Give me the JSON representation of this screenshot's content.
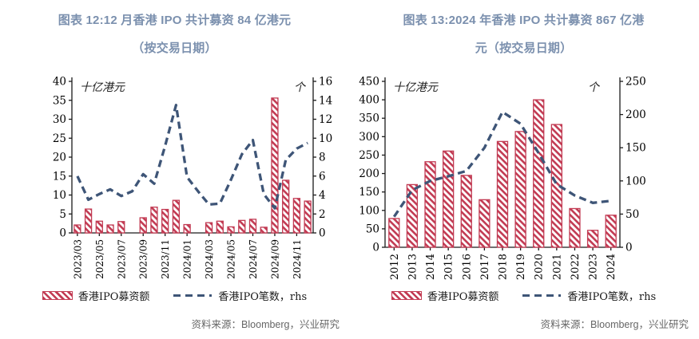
{
  "colors": {
    "title": "#7b90ae",
    "bar": "#c23b53",
    "bar_fill_bg": "#ffffff",
    "line": "#3e5577",
    "axis": "#1a1a1a",
    "source_text": "#666666"
  },
  "panels": [
    {
      "title_line1": "图表 12:12 月香港 IPO 共计募资 84 亿港元",
      "title_line2": "（按交易日期）",
      "legend": {
        "bars": "香港IPO募资额",
        "line": "香港IPO笔数，rhs"
      },
      "source": "资料来源：Bloomberg，兴业研究"
    },
    {
      "title_line1": "图表 13:2024 年香港 IPO 共计募资 867 亿港",
      "title_line2": "元（按交易日期）",
      "legend": {
        "bars": "香港IPO募资额",
        "line": "香港IPO笔数，rhs"
      },
      "source": "资料来源：Bloomberg，兴业研究"
    }
  ],
  "chart_data": [
    {
      "type": "bar",
      "title": "图表 12:12 月香港 IPO 共计募资 84 亿港元（按交易日期）",
      "categories": [
        "2023/03",
        "2023/04",
        "2023/05",
        "2023/06",
        "2023/07",
        "2023/08",
        "2023/09",
        "2023/10",
        "2023/11",
        "2023/12",
        "2024/01",
        "2024/02",
        "2024/03",
        "2024/04",
        "2024/05",
        "2024/06",
        "2024/07",
        "2024/08",
        "2024/09",
        "2024/10",
        "2024/11",
        "2024/12"
      ],
      "x_tick_labels": [
        "2023/03",
        "2023/05",
        "2023/07",
        "2023/09",
        "2023/11",
        "2024/01",
        "2024/03",
        "2024/05",
        "2024/07",
        "2024/09",
        "2024/11"
      ],
      "series": [
        {
          "name": "香港IPO募资额",
          "type": "bar",
          "axis": "left",
          "values": [
            2.1,
            6.3,
            3.1,
            2.1,
            3.0,
            0,
            4.0,
            6.8,
            6.2,
            8.6,
            2.2,
            0,
            2.7,
            3.1,
            1.6,
            3.3,
            3.6,
            1.5,
            35.6,
            13.9,
            9.1,
            8.4
          ]
        },
        {
          "name": "香港IPO笔数，rhs",
          "type": "line",
          "axis": "right",
          "values": [
            6.0,
            3.5,
            4.1,
            4.6,
            3.9,
            4.4,
            6.2,
            5.2,
            9.2,
            13.5,
            5.9,
            4.4,
            3.0,
            3.1,
            5.6,
            8.3,
            9.8,
            4.1,
            2.6,
            7.7,
            8.9,
            9.5
          ]
        }
      ],
      "left_axis": {
        "label": "十亿港元",
        "min": 0,
        "max": 40,
        "step": 5
      },
      "right_axis": {
        "label": "个",
        "min": 0,
        "max": 16,
        "step": 2
      },
      "grid": false,
      "legend_position": "bottom"
    },
    {
      "type": "bar",
      "title": "图表 13:2024 年香港 IPO 共计募资 867 亿港元（按交易日期）",
      "categories": [
        "2012",
        "2013",
        "2014",
        "2015",
        "2016",
        "2017",
        "2018",
        "2019",
        "2020",
        "2021",
        "2022",
        "2023",
        "2024"
      ],
      "x_tick_labels": [
        "2012",
        "2013",
        "2014",
        "2015",
        "2016",
        "2017",
        "2018",
        "2019",
        "2020",
        "2021",
        "2022",
        "2023",
        "2024"
      ],
      "series": [
        {
          "name": "香港IPO募资额",
          "type": "bar",
          "axis": "left",
          "values": [
            78,
            170,
            232,
            261,
            195,
            129,
            287,
            314,
            400,
            333,
            105,
            46,
            87
          ]
        },
        {
          "name": "香港IPO笔数，rhs",
          "type": "line",
          "axis": "right",
          "values": [
            46,
            86,
            100,
            107,
            115,
            150,
            204,
            186,
            142,
            95,
            78,
            67,
            70
          ]
        }
      ],
      "left_axis": {
        "label": "十亿港元",
        "min": 0,
        "max": 450,
        "step": 50
      },
      "right_axis": {
        "label": "个",
        "min": 0,
        "max": 250,
        "step": 50
      },
      "grid": false,
      "legend_position": "bottom"
    }
  ]
}
